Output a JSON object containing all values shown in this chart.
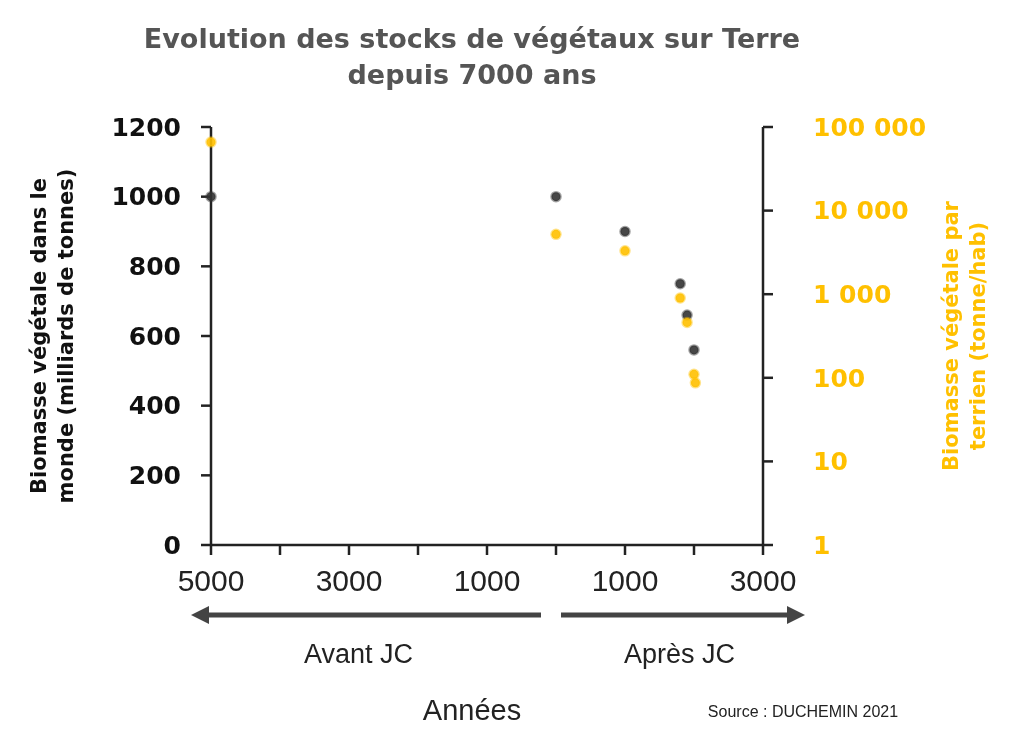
{
  "chart_data": {
    "type": "scatter",
    "title": "Evolution des stocks de végétaux sur Terre depuis 7000 ans",
    "xlabel": "Années",
    "ylabel": "Biomasse végétale dans le monde (milliards de tonnes)",
    "y2label": "Biomasse végétale par terrien (tonne/hab)",
    "annotations": [
      "Avant JC",
      "Après JC",
      "Source : DUCHEMIN 2021"
    ],
    "series": [
      {
        "color": "#333333",
        "x": [
          -5000,
          0,
          1000,
          1800,
          1900,
          2000
        ],
        "values": [
          1000,
          1000,
          900,
          750,
          660,
          560
        ]
      },
      {
        "color": "#ffc000",
        "axis": "y2",
        "x": [
          -5000,
          0,
          1000,
          1800,
          1900,
          2000,
          2020
        ],
        "values": [
          66000,
          5200,
          3300,
          900,
          460,
          110,
          87
        ]
      }
    ],
    "xlim": [
      -5000,
      3000
    ],
    "xticks": [
      {
        "value": -5000,
        "label": "5000"
      },
      {
        "value": -4000,
        "label": null
      },
      {
        "value": -3000,
        "label": "3000"
      },
      {
        "value": -2000,
        "label": null
      },
      {
        "value": -1000,
        "label": "1000"
      },
      {
        "value": 0,
        "label": null
      },
      {
        "value": 1000,
        "label": "1000"
      },
      {
        "value": 2000,
        "label": null
      },
      {
        "value": 3000,
        "label": "3000"
      }
    ],
    "ylim": [
      0,
      1200
    ],
    "yticks": [
      0,
      200,
      400,
      600,
      800,
      1000,
      1200
    ],
    "log": "y2",
    "y2lim": [
      1,
      100000
    ],
    "y2ticks": [
      1,
      10,
      100,
      {
        "value": 1000,
        "label": "1 000"
      },
      {
        "value": 10000,
        "label": "10 000"
      },
      {
        "value": 100000,
        "label": "100 000"
      }
    ],
    "marker": "circle"
  }
}
